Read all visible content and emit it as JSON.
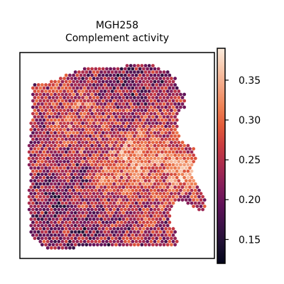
{
  "chart_data": {
    "type": "scatter",
    "title_line1": "MGH258",
    "title_line2": "Complement activity",
    "xlabel": "",
    "ylabel": "",
    "grid": false,
    "colorbar": {
      "colormap": "rocket",
      "range": [
        0.12,
        0.39
      ],
      "ticks": [
        0.15,
        0.2,
        0.25,
        0.3,
        0.35
      ],
      "tick_labels": [
        "0.15",
        "0.20",
        "0.25",
        "0.30",
        "0.35"
      ]
    },
    "spatial_trend": {
      "description_free": true,
      "low_regions_value": 0.17,
      "high_regions_value": 0.33,
      "mean": 0.235
    },
    "colors": {
      "rocket": [
        "#03051a",
        "#1e1133",
        "#3e1249",
        "#611259",
        "#841e5a",
        "#a92b4f",
        "#ca3d40",
        "#e35c3a",
        "#ee8356",
        "#f3a583",
        "#f7c9ae",
        "#faebdd"
      ]
    }
  }
}
